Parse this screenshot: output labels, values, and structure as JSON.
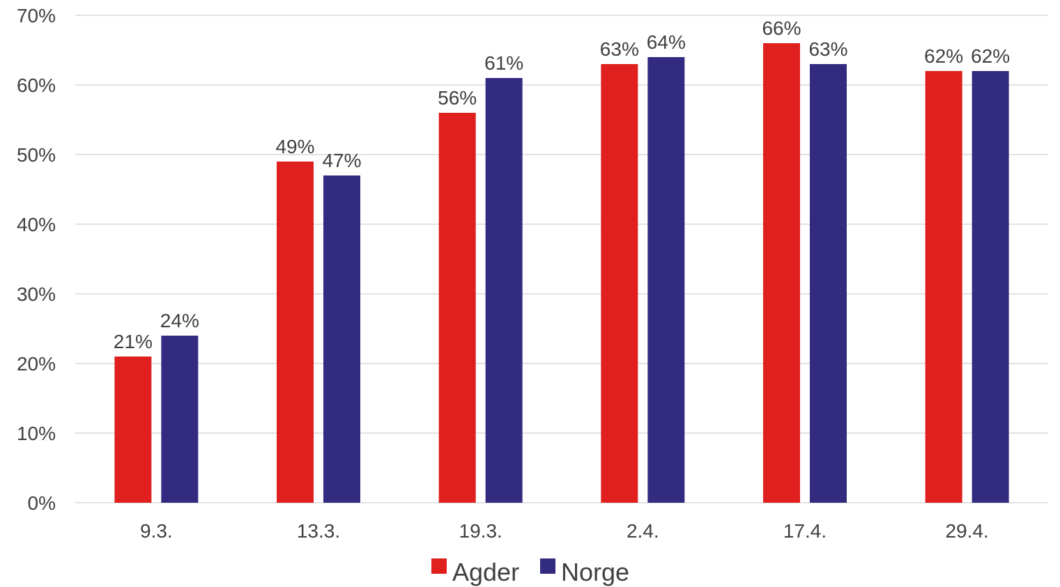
{
  "chart_data": {
    "type": "bar",
    "categories": [
      "9.3.",
      "13.3.",
      "19.3.",
      "2.4.",
      "17.4.",
      "29.4."
    ],
    "series": [
      {
        "name": "Agder",
        "color": "#e01f1f",
        "values": [
          21,
          49,
          56,
          63,
          66,
          62
        ]
      },
      {
        "name": "Norge",
        "color": "#332b80",
        "values": [
          24,
          47,
          61,
          64,
          63,
          62
        ]
      }
    ],
    "value_labels": [
      [
        "21%",
        "49%",
        "56%",
        "63%",
        "66%",
        "62%"
      ],
      [
        "24%",
        "47%",
        "61%",
        "64%",
        "63%",
        "62%"
      ]
    ],
    "y_ticks": [
      0,
      10,
      20,
      30,
      40,
      50,
      60,
      70
    ],
    "y_tick_labels": [
      "0%",
      "10%",
      "20%",
      "30%",
      "40%",
      "50%",
      "60%",
      "70%"
    ],
    "ylim": [
      0,
      70
    ],
    "grid": true,
    "legend_position": "bottom-center"
  }
}
